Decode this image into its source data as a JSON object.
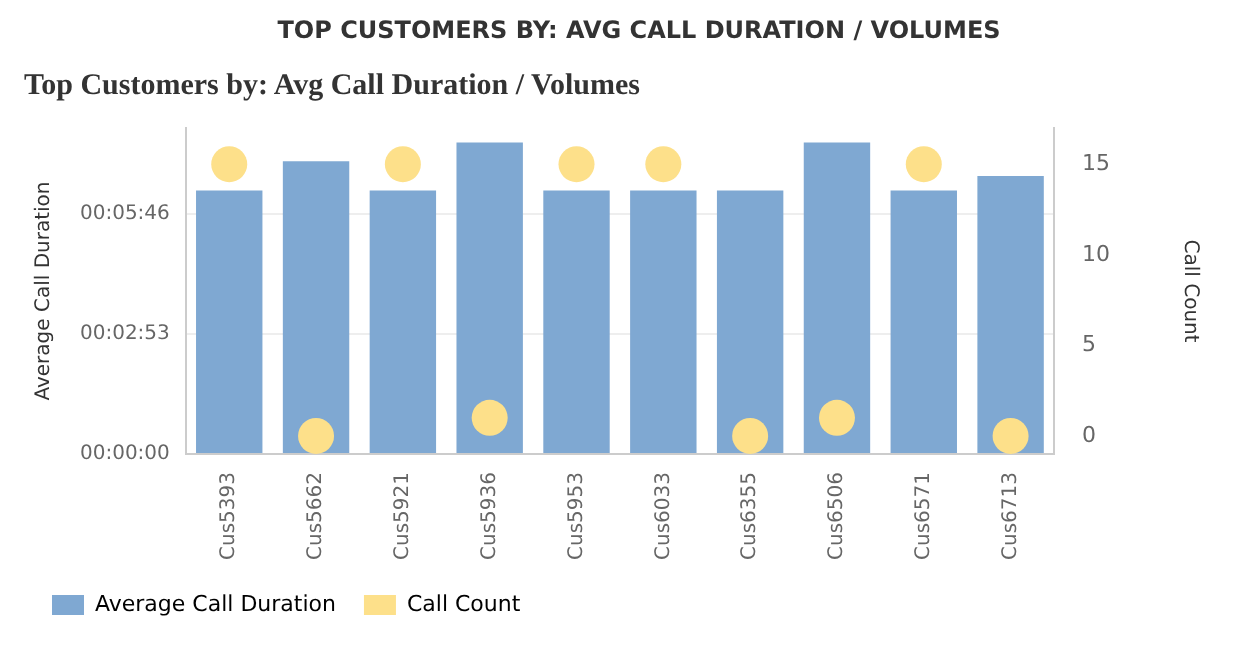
{
  "chart_data": {
    "type": "bar",
    "title": "TOP CUSTOMERS BY: AVG CALL DURATION / VOLUMES",
    "subtitle": "Top Customers by: Avg Call Duration / Volumes",
    "ylabel": "Average Call Duration",
    "y2label": "Call Count",
    "categories": [
      "Cus5393",
      "Cus5662",
      "Cus5921",
      "Cus5936",
      "Cus5953",
      "Cus6033",
      "Cus6355",
      "Cus6506",
      "Cus6571",
      "Cus6713"
    ],
    "series": [
      {
        "name": "Average Call Duration",
        "color": "#7fa8d2",
        "values": [
          379,
          421,
          379,
          448,
          379,
          379,
          379,
          448,
          379,
          400
        ]
      },
      {
        "name": "Call Count",
        "type": "scatter",
        "axis": "y2",
        "color": "#fde08a",
        "marker": "circle",
        "x": [
          "Cus5393",
          "Cus5662",
          "Cus5921",
          "Cus5936",
          "Cus5953",
          "Cus6033",
          "Cus6355",
          "Cus6506",
          "Cus6571",
          "Cus6713"
        ],
        "values": [
          15,
          0,
          15,
          1,
          15,
          15,
          0,
          1,
          15,
          0
        ]
      }
    ],
    "ylim": [
      0,
      469
    ],
    "yticks": [
      {
        "value": 0,
        "label": "00:00:00"
      },
      {
        "value": 173,
        "label": "00:02:53"
      },
      {
        "value": 346,
        "label": "00:05:46"
      }
    ],
    "y2lim": [
      -1,
      17
    ],
    "y2ticks": [
      0,
      5,
      10,
      15
    ],
    "grid": "y",
    "legend": "bottom"
  }
}
